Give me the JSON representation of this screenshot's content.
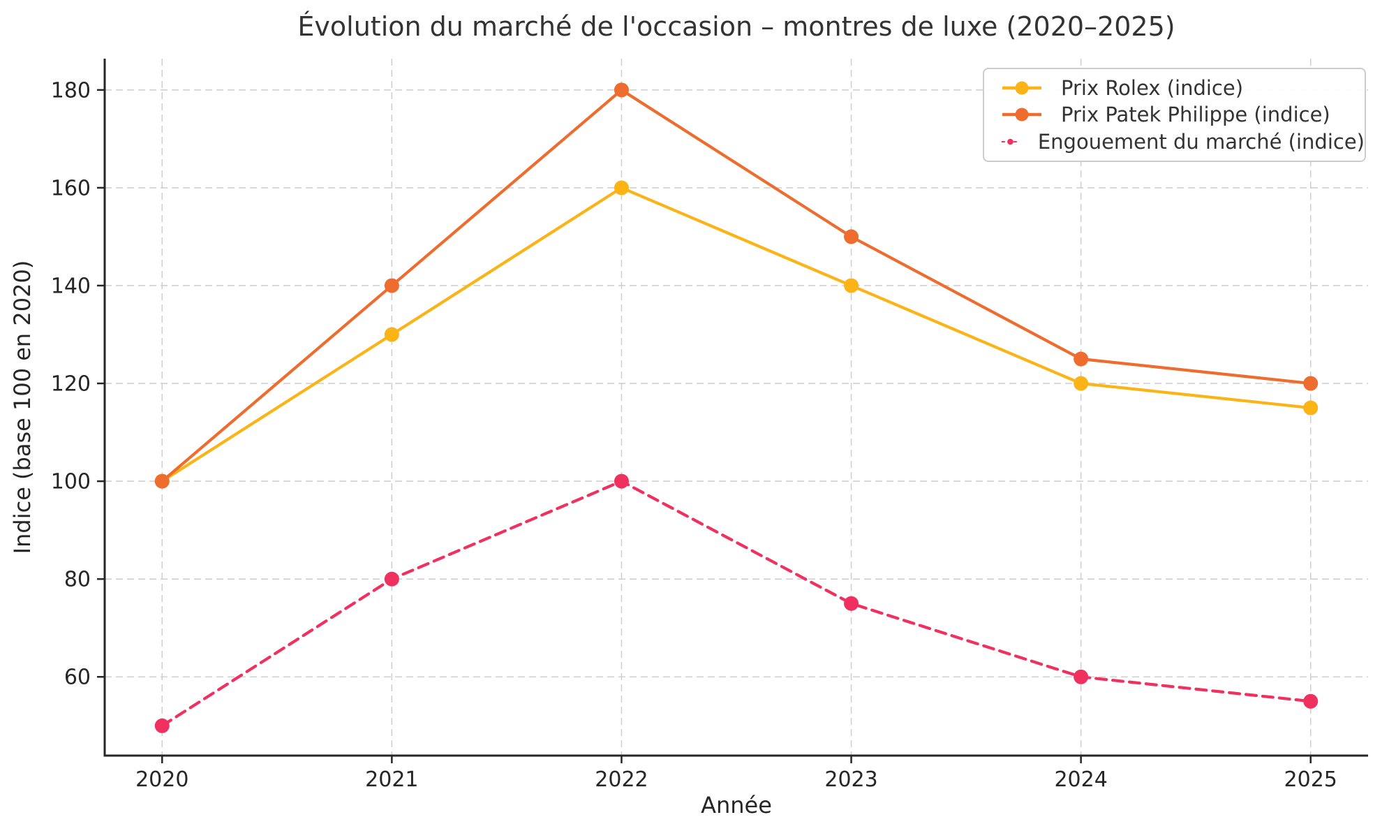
{
  "chart_data": {
    "type": "line",
    "title": "Évolution du marché de l'occasion – montres de luxe (2020–2025)",
    "xlabel": "Année",
    "ylabel": "Indice (base 100 en 2020)",
    "x": [
      2020,
      2021,
      2022,
      2023,
      2024,
      2025
    ],
    "series": [
      {
        "name": "Prix Rolex (indice)",
        "values": [
          100,
          130,
          160,
          140,
          120,
          115
        ],
        "color": "#FBB316",
        "style": "solid"
      },
      {
        "name": "Prix Patek Philippe (indice)",
        "values": [
          100,
          140,
          180,
          150,
          125,
          120
        ],
        "color": "#EE6C2D",
        "style": "solid"
      },
      {
        "name": "Engouement du marché (indice)",
        "values": [
          50,
          80,
          100,
          75,
          60,
          55
        ],
        "color": "#F0315F",
        "style": "dashed"
      }
    ],
    "yticks": [
      60,
      80,
      100,
      120,
      140,
      160,
      180
    ],
    "xlim": [
      2019.75,
      2025.25
    ],
    "ylim": [
      43.9,
      186.4
    ],
    "grid": true,
    "legend_position": "upper right",
    "colors": {
      "grid": "#d0d0d0",
      "spine": "#262626",
      "tick_text": "#262626"
    }
  }
}
